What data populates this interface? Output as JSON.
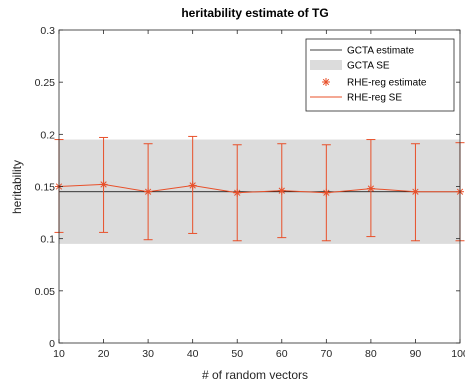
{
  "chart_data": {
    "type": "line",
    "title": "heritability estimate of TG",
    "xlabel": "# of random vectors",
    "ylabel": "heritability",
    "xlim": [
      10,
      100
    ],
    "ylim": [
      0,
      0.3
    ],
    "xticks": [
      10,
      20,
      30,
      40,
      50,
      60,
      70,
      80,
      90,
      100
    ],
    "yticks": [
      0,
      0.05,
      0.1,
      0.15,
      0.2,
      0.25,
      0.3
    ],
    "xtick_labels": [
      "10",
      "20",
      "30",
      "40",
      "50",
      "60",
      "70",
      "80",
      "90",
      "100"
    ],
    "ytick_labels": [
      "0",
      "0.05",
      "0.1",
      "0.15",
      "0.2",
      "0.25",
      "0.3"
    ],
    "grid": false,
    "legend_position": "top-right",
    "gcta": {
      "name": "GCTA estimate",
      "value": 0.145,
      "color": "#000000"
    },
    "gcta_se": {
      "name": "GCTA SE",
      "lower": 0.095,
      "upper": 0.195,
      "color": "#dcdcdc"
    },
    "rhe": {
      "name": "RHE-reg estimate",
      "se_name": "RHE-reg SE",
      "color": "#e8502a",
      "x": [
        10,
        20,
        30,
        40,
        50,
        60,
        70,
        80,
        90,
        100
      ],
      "y": [
        0.15,
        0.152,
        0.145,
        0.151,
        0.144,
        0.146,
        0.144,
        0.148,
        0.145,
        0.145
      ],
      "lower": [
        0.106,
        0.106,
        0.099,
        0.105,
        0.098,
        0.101,
        0.098,
        0.102,
        0.098,
        0.098
      ],
      "upper": [
        0.195,
        0.197,
        0.191,
        0.198,
        0.19,
        0.191,
        0.19,
        0.195,
        0.191,
        0.192
      ]
    }
  }
}
